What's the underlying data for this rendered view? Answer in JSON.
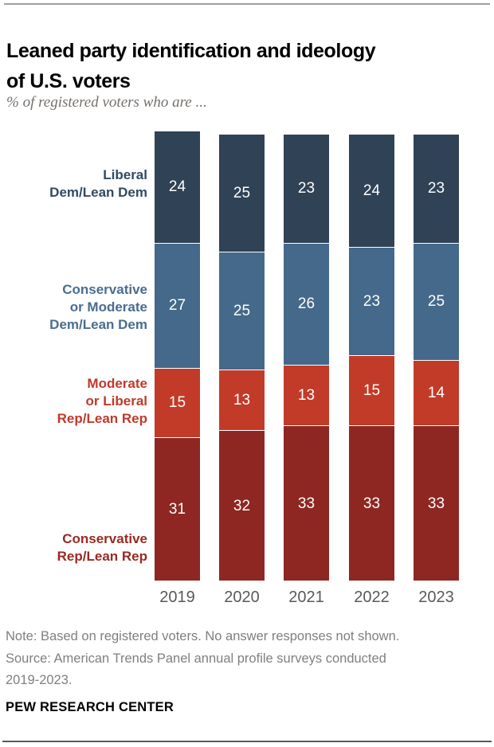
{
  "header": {
    "title_line1": "Leaned party identification and ideology",
    "title_line2": "of U.S. voters",
    "subtitle": "% of registered voters who are ..."
  },
  "chart_data": {
    "type": "bar",
    "stacked": true,
    "orientation": "vertical",
    "legend_position": "left-of-bars",
    "grid": false,
    "value_format": "percent",
    "categories": [
      "2019",
      "2020",
      "2021",
      "2022",
      "2023"
    ],
    "series": [
      {
        "name": "Liberal Dem/Lean Dem",
        "label_lines": [
          "Liberal",
          "Dem/Lean Dem"
        ],
        "color": "#2f4256",
        "label_color": "#2f4b63",
        "values": [
          24,
          25,
          23,
          24,
          23
        ]
      },
      {
        "name": "Conservative or Moderate Dem/Lean Dem",
        "label_lines": [
          "Conservative",
          "or Moderate",
          "Dem/Lean Dem"
        ],
        "color": "#44698a",
        "label_color": "#4a6d8f",
        "values": [
          27,
          25,
          26,
          23,
          25
        ]
      },
      {
        "name": "Moderate or Liberal Rep/Lean Rep",
        "label_lines": [
          "Moderate",
          "or Liberal",
          "Rep/Lean Rep"
        ],
        "color": "#c23b28",
        "label_color": "#c0392b",
        "values": [
          15,
          13,
          13,
          15,
          14
        ]
      },
      {
        "name": "Conservative Rep/Lean Rep",
        "label_lines": [
          "Conservative",
          "Rep/Lean Rep"
        ],
        "color": "#8e2722",
        "label_color": "#982a23",
        "values": [
          31,
          32,
          33,
          33,
          33
        ]
      }
    ]
  },
  "footer": {
    "note": "Note: Based on registered voters. No answer responses not shown.",
    "source": "Source: American Trends Panel annual profile surveys conducted",
    "source2": "2019-2023.",
    "brand": "PEW RESEARCH CENTER"
  }
}
